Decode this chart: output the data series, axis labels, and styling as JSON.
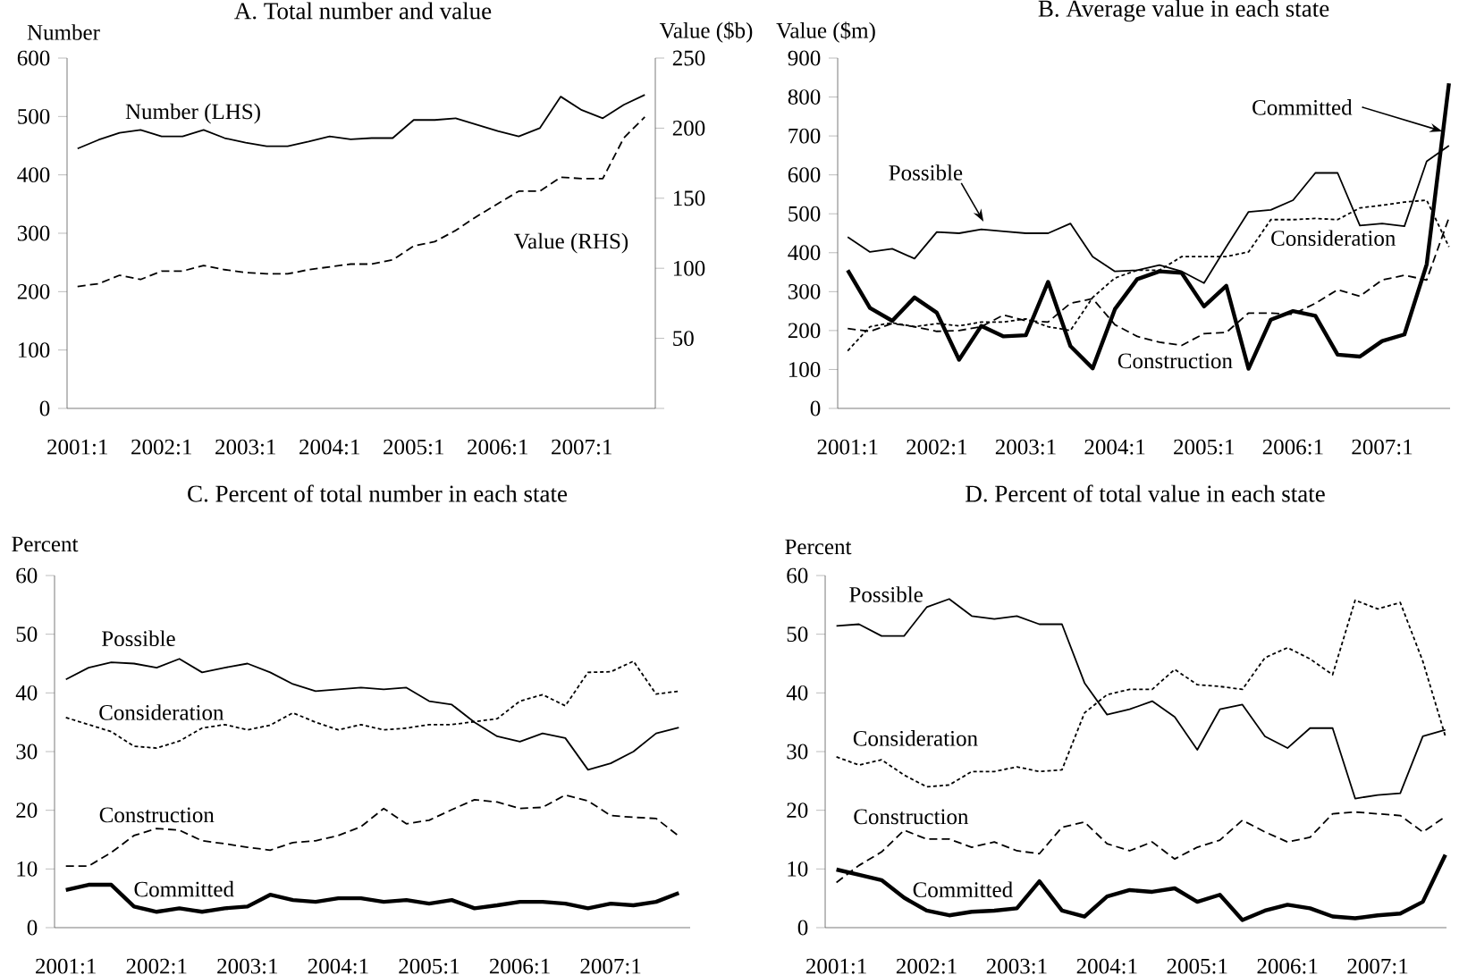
{
  "chart_data": [
    {
      "type": "line",
      "title": "A. Total number and value",
      "ylabel": "Number",
      "y2label": "Value ($b)",
      "categories": [
        "2001:1",
        null,
        null,
        null,
        "2002:1",
        null,
        null,
        null,
        "2003:1",
        null,
        null,
        null,
        "2004:1",
        null,
        null,
        null,
        "2005:1",
        null,
        null,
        null,
        "2006:1",
        null,
        null,
        null,
        "2007:1",
        null,
        null,
        null
      ],
      "ylim": [
        0,
        600
      ],
      "yticks": [
        0,
        100,
        200,
        300,
        400,
        500,
        600
      ],
      "y2lim": [
        0,
        250
      ],
      "y2ticks": [
        50,
        100,
        150,
        200,
        250
      ],
      "series": [
        {
          "name": "Number (LHS)",
          "color": "#000000",
          "line_style": "solid",
          "values": [
            445,
            460,
            472,
            477,
            466,
            466,
            477,
            463,
            455,
            449,
            449,
            457,
            466,
            461,
            463,
            463,
            494,
            494,
            497,
            486,
            475,
            466,
            480,
            534,
            511,
            497,
            520,
            537
          ]
        },
        {
          "name": "Value (RHS)",
          "color": "#000000",
          "line_style": "dashed",
          "axis": "y2",
          "values": [
            87,
            89,
            95,
            92,
            98,
            98,
            102,
            99,
            97,
            96,
            96,
            99,
            101,
            103,
            103,
            106,
            116,
            119,
            127,
            137,
            146,
            155,
            155,
            165,
            164,
            164,
            193,
            208
          ]
        }
      ]
    },
    {
      "type": "line",
      "title": "B. Average value in each state",
      "ylabel": "Value ($m)",
      "categories": [
        "2001:1",
        null,
        null,
        null,
        "2002:1",
        null,
        null,
        null,
        "2003:1",
        null,
        null,
        null,
        "2004:1",
        null,
        null,
        null,
        "2005:1",
        null,
        null,
        null,
        "2006:1",
        null,
        null,
        null,
        "2007:1",
        null,
        null,
        null
      ],
      "ylim": [
        0,
        900
      ],
      "yticks": [
        0,
        100,
        200,
        300,
        400,
        500,
        600,
        700,
        800,
        900
      ],
      "series": [
        {
          "name": "Possible",
          "color": "#000000",
          "line_style": "solid",
          "values": [
            440,
            402,
            410,
            385,
            453,
            450,
            460,
            455,
            450,
            450,
            475,
            390,
            352,
            355,
            368,
            352,
            322,
            415,
            505,
            510,
            535,
            605,
            605,
            470,
            475,
            468,
            635,
            675
          ]
        },
        {
          "name": "Consideration",
          "color": "#000000",
          "line_style": "dotted",
          "values": [
            148,
            210,
            220,
            210,
            218,
            212,
            222,
            222,
            230,
            210,
            200,
            285,
            335,
            355,
            355,
            390,
            390,
            390,
            402,
            485,
            485,
            488,
            485,
            515,
            522,
            530,
            535,
            415
          ]
        },
        {
          "name": "Construction",
          "color": "#000000",
          "line_style": "dashed",
          "values": [
            205,
            198,
            218,
            210,
            198,
            200,
            210,
            240,
            225,
            222,
            270,
            282,
            215,
            185,
            170,
            162,
            192,
            195,
            245,
            245,
            242,
            270,
            305,
            288,
            330,
            342,
            330,
            490
          ]
        },
        {
          "name": "Committed",
          "color": "#000000",
          "line_style": "solid",
          "values": [
            355,
            258,
            225,
            285,
            246,
            125,
            212,
            185,
            188,
            325,
            160,
            103,
            255,
            332,
            352,
            348,
            262,
            315,
            102,
            228,
            250,
            238,
            138,
            133,
            173,
            190,
            370,
            835
          ]
        }
      ]
    },
    {
      "type": "line",
      "title": "C. Percent of total number in each state",
      "ylabel": "Percent",
      "categories": [
        "2001:1",
        null,
        null,
        null,
        "2002:1",
        null,
        null,
        null,
        "2003:1",
        null,
        null,
        null,
        "2004:1",
        null,
        null,
        null,
        "2005:1",
        null,
        null,
        null,
        "2006:1",
        null,
        null,
        null,
        "2007:1",
        null,
        null,
        null
      ],
      "ylim": [
        0,
        60
      ],
      "yticks": [
        0,
        10,
        20,
        30,
        40,
        50,
        60
      ],
      "series": [
        {
          "name": "Possible",
          "color": "#000000",
          "line_style": "solid",
          "values": [
            42.3,
            44.3,
            45.2,
            45.0,
            44.3,
            45.8,
            43.5,
            44.3,
            45.0,
            43.5,
            41.5,
            40.3,
            40.6,
            40.9,
            40.6,
            40.9,
            38.6,
            38.0,
            35.0,
            32.6,
            31.7,
            33.1,
            32.3,
            26.9,
            28.0,
            30.0,
            33.1,
            34.1
          ]
        },
        {
          "name": "Consideration",
          "color": "#000000",
          "line_style": "dotted",
          "values": [
            35.8,
            34.6,
            33.4,
            30.9,
            30.6,
            31.8,
            34.0,
            34.6,
            33.7,
            34.5,
            36.6,
            35.0,
            33.7,
            34.6,
            33.7,
            34.0,
            34.6,
            34.6,
            35.1,
            35.6,
            38.6,
            39.7,
            37.8,
            43.5,
            43.6,
            45.4,
            39.8,
            40.3
          ]
        },
        {
          "name": "Construction",
          "color": "#000000",
          "line_style": "dashed",
          "values": [
            10.5,
            10.5,
            12.8,
            15.7,
            16.9,
            16.6,
            14.8,
            14.3,
            13.7,
            13.2,
            14.5,
            14.8,
            15.7,
            17.2,
            20.3,
            17.7,
            18.3,
            20.1,
            21.8,
            21.4,
            20.3,
            20.5,
            22.6,
            21.6,
            19.1,
            18.8,
            18.6,
            15.6
          ]
        },
        {
          "name": "Committed",
          "color": "#000000",
          "line_style": "solid",
          "values": [
            6.4,
            7.3,
            7.3,
            3.6,
            2.7,
            3.3,
            2.7,
            3.3,
            3.6,
            5.6,
            4.7,
            4.4,
            5.0,
            5.0,
            4.4,
            4.7,
            4.1,
            4.7,
            3.3,
            3.8,
            4.4,
            4.4,
            4.1,
            3.3,
            4.1,
            3.8,
            4.4,
            5.9
          ]
        }
      ]
    },
    {
      "type": "line",
      "title": "D. Percent of total value in each state",
      "ylabel": "Percent",
      "categories": [
        "2001:1",
        null,
        null,
        null,
        "2002:1",
        null,
        null,
        null,
        "2003:1",
        null,
        null,
        null,
        "2004:1",
        null,
        null,
        null,
        "2005:1",
        null,
        null,
        null,
        "2006:1",
        null,
        null,
        null,
        "2007:1",
        null,
        null,
        null
      ],
      "ylim": [
        0,
        60
      ],
      "yticks": [
        0,
        10,
        20,
        30,
        40,
        50,
        60
      ],
      "series": [
        {
          "name": "Possible",
          "color": "#000000",
          "line_style": "solid",
          "values": [
            51.4,
            51.7,
            49.7,
            49.7,
            54.6,
            56.0,
            53.1,
            52.6,
            53.1,
            51.7,
            51.7,
            41.7,
            36.3,
            37.2,
            38.6,
            35.9,
            30.3,
            37.2,
            38.0,
            32.6,
            30.6,
            34.0,
            34.0,
            22.0,
            22.6,
            22.9,
            32.6,
            33.7
          ]
        },
        {
          "name": "Consideration",
          "color": "#000000",
          "line_style": "dotted",
          "values": [
            29.1,
            27.7,
            28.6,
            26.0,
            24.0,
            24.3,
            26.6,
            26.6,
            27.4,
            26.6,
            26.9,
            36.6,
            39.7,
            40.6,
            40.6,
            44.0,
            41.4,
            41.1,
            40.6,
            46.0,
            47.7,
            45.8,
            43.1,
            55.8,
            54.3,
            55.4,
            45.4,
            32.6
          ]
        },
        {
          "name": "Construction",
          "color": "#000000",
          "line_style": "dashed",
          "values": [
            7.7,
            10.6,
            12.9,
            16.6,
            15.1,
            15.1,
            13.7,
            14.6,
            13.1,
            12.6,
            17.1,
            18.0,
            14.3,
            13.1,
            14.6,
            11.7,
            13.7,
            14.9,
            18.3,
            16.3,
            14.6,
            15.4,
            19.4,
            19.7,
            19.4,
            19.1,
            16.3,
            18.9
          ]
        },
        {
          "name": "Committed",
          "color": "#000000",
          "line_style": "solid",
          "values": [
            9.9,
            9.0,
            8.1,
            5.1,
            2.9,
            2.1,
            2.7,
            2.9,
            3.3,
            7.9,
            2.9,
            1.9,
            5.3,
            6.4,
            6.1,
            6.7,
            4.4,
            5.6,
            1.3,
            2.9,
            3.9,
            3.3,
            1.9,
            1.6,
            2.1,
            2.4,
            4.4,
            12.4
          ]
        }
      ]
    }
  ]
}
